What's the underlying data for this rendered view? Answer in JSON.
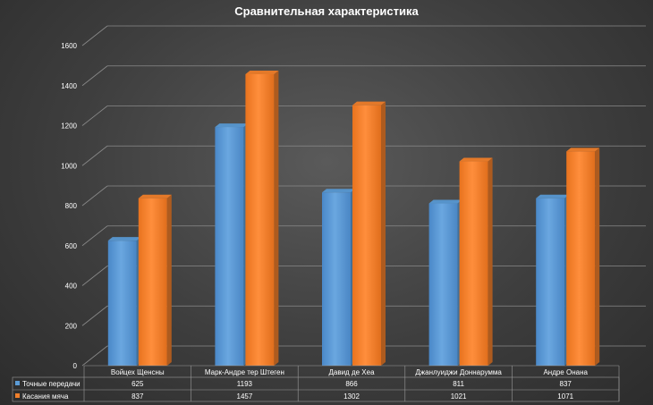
{
  "chart_data": {
    "type": "bar",
    "title": "Сравнительная характеристика",
    "categories": [
      "Войцех Щенсны",
      "Марк-Андре тер Штеген",
      "Давид де Хеа",
      "Джанлуиджи Доннарумма",
      "Андре Онана"
    ],
    "series": [
      {
        "name": "Точные передачи",
        "values": [
          625,
          1193,
          866,
          811,
          837
        ],
        "color": "#5b9bd5"
      },
      {
        "name": "Касания мяча",
        "values": [
          837,
          1457,
          1302,
          1021,
          1071
        ],
        "color": "#f07f2b"
      }
    ],
    "y_ticks": [
      "0",
      "200",
      "400",
      "600",
      "800",
      "1000",
      "1200",
      "1400",
      "1600"
    ],
    "ylim": [
      0,
      1600
    ],
    "grid": true,
    "legend": "data-table",
    "bar_style": "3d"
  }
}
